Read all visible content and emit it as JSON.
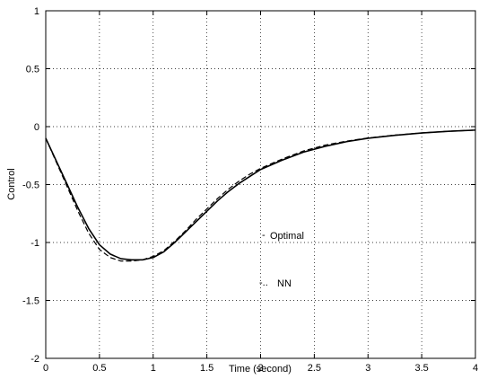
{
  "chart_data": {
    "type": "line",
    "xlabel": "Time (second)",
    "ylabel": "Control",
    "xlim": [
      0,
      4
    ],
    "ylim": [
      -2,
      1
    ],
    "grid": true,
    "x_ticks": [
      "0",
      "0.5",
      "1",
      "1.5",
      "2",
      "2.5",
      "3",
      "3.5",
      "4"
    ],
    "y_ticks": [
      "1",
      "0.5",
      "0",
      "-0.5",
      "-1",
      "-1.5",
      "-2"
    ],
    "legend": [
      {
        "name": "Optimal",
        "marker": "-"
      },
      {
        "name": "NN",
        "marker": "-.."
      }
    ],
    "series": [
      {
        "name": "Optimal",
        "style": "solid",
        "x": [
          0,
          0.1,
          0.2,
          0.3,
          0.4,
          0.5,
          0.6,
          0.7,
          0.8,
          0.9,
          1.0,
          1.1,
          1.2,
          1.3,
          1.4,
          1.5,
          1.6,
          1.7,
          1.8,
          1.9,
          2.0,
          2.2,
          2.4,
          2.6,
          2.8,
          3.0,
          3.25,
          3.5,
          3.75,
          4.0
        ],
        "y": [
          -0.1,
          -0.3,
          -0.5,
          -0.7,
          -0.88,
          -1.02,
          -1.1,
          -1.14,
          -1.15,
          -1.15,
          -1.13,
          -1.08,
          -1.0,
          -0.91,
          -0.82,
          -0.73,
          -0.64,
          -0.56,
          -0.49,
          -0.43,
          -0.37,
          -0.29,
          -0.22,
          -0.17,
          -0.13,
          -0.1,
          -0.075,
          -0.055,
          -0.04,
          -0.03
        ]
      },
      {
        "name": "NN",
        "style": "dashed",
        "x": [
          0,
          0.1,
          0.2,
          0.3,
          0.4,
          0.5,
          0.6,
          0.7,
          0.8,
          0.9,
          1.0,
          1.1,
          1.2,
          1.3,
          1.4,
          1.5,
          1.6,
          1.7,
          1.8,
          1.9,
          2.0,
          2.2,
          2.4,
          2.6,
          2.8,
          3.0,
          3.25,
          3.5,
          3.75,
          4.0
        ],
        "y": [
          -0.1,
          -0.31,
          -0.52,
          -0.73,
          -0.92,
          -1.06,
          -1.13,
          -1.16,
          -1.16,
          -1.15,
          -1.12,
          -1.07,
          -0.99,
          -0.9,
          -0.8,
          -0.71,
          -0.62,
          -0.54,
          -0.47,
          -0.41,
          -0.36,
          -0.28,
          -0.21,
          -0.16,
          -0.125,
          -0.098,
          -0.073,
          -0.054,
          -0.04,
          -0.03
        ]
      }
    ]
  }
}
